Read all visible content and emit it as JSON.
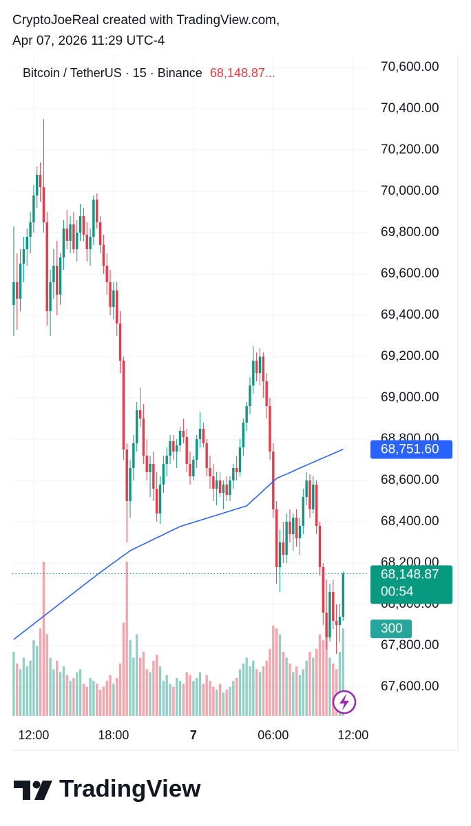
{
  "chart_data": {
    "type": "candlestick",
    "header": [
      "CryptoJoeReal created with TradingView.com,",
      "Apr 07, 2026 11:29 UTC-4"
    ],
    "title": "Bitcoin / TetherUS · 15 · Binance",
    "price_text": "68,148.87...",
    "brand": "TradingView",
    "up_color": "#089981",
    "down_color": "#f23645",
    "ma_color": "#2962ff",
    "grid": true,
    "ylim": [
      67460,
      70660
    ],
    "yticks": [
      {
        "value": 70600,
        "label": "70,600.00"
      },
      {
        "value": 70400,
        "label": "70,400.00"
      },
      {
        "value": 70200,
        "label": "70,200.00"
      },
      {
        "value": 70000,
        "label": "70,000.00"
      },
      {
        "value": 69800,
        "label": "69,800.00"
      },
      {
        "value": 69600,
        "label": "69,600.00"
      },
      {
        "value": 69400,
        "label": "69,400.00"
      },
      {
        "value": 69200,
        "label": "69,200.00"
      },
      {
        "value": 69000,
        "label": "69,000.00"
      },
      {
        "value": 68800,
        "label": "68,800.00"
      },
      {
        "value": 68600,
        "label": "68,600.00"
      },
      {
        "value": 68400,
        "label": "68,400.00"
      },
      {
        "value": 68200,
        "label": "68,200.00"
      },
      {
        "value": 68000,
        "label": "68,000.00"
      },
      {
        "value": 67800,
        "label": "67,800.00"
      },
      {
        "value": 67600,
        "label": "67,600.00"
      }
    ],
    "xlim": [
      -0.4,
      106.6
    ],
    "xticks": [
      {
        "value": 6,
        "label": "12:00"
      },
      {
        "value": 30,
        "label": "18:00"
      },
      {
        "value": 54,
        "label": "7"
      },
      {
        "value": 78,
        "label": "06:00"
      },
      {
        "value": 102,
        "label": "12:00"
      }
    ],
    "vlim": [
      0,
      740
    ],
    "ma_last": {
      "value": 68751.6,
      "label": "68,751.60"
    },
    "last_price": {
      "value": 68148.87,
      "label": "68,148.87"
    },
    "countdown": "00:54",
    "open": [
      69450,
      69560,
      69480,
      69650,
      69720,
      69780,
      69850,
      69980,
      70080,
      70020,
      69850,
      69420,
      69560,
      69640,
      69500,
      69680,
      69820,
      69760,
      69840,
      69720,
      69800,
      69880,
      69790,
      69720,
      69780,
      69960,
      69850,
      69740,
      69640,
      69560,
      69440,
      69520,
      69360,
      69180,
      68750,
      68500,
      68660,
      68780,
      68940,
      68900,
      68720,
      68640,
      68680,
      68560,
      68440,
      68580,
      68680,
      68720,
      68790,
      68740,
      68770,
      68840,
      68810,
      68680,
      68620,
      68700,
      68800,
      68850,
      68780,
      68660,
      68620,
      68560,
      68600,
      68540,
      68580,
      68530,
      68600,
      68660,
      68640,
      68760,
      68880,
      68960,
      69060,
      69180,
      69120,
      69200,
      69080,
      68960,
      68740,
      68460,
      68180,
      68300,
      68240,
      68400,
      68340,
      68420,
      68320,
      68380,
      68520,
      68600,
      68460,
      68580,
      68380,
      68180,
      67960,
      67840,
      68060,
      67920,
      67900,
      67940
    ],
    "high": [
      69830,
      69700,
      69720,
      69780,
      69820,
      69900,
      70030,
      70120,
      70140,
      70350,
      69900,
      69620,
      69720,
      69760,
      69700,
      69860,
      69910,
      69880,
      69900,
      69860,
      69940,
      69920,
      69850,
      69820,
      69980,
      69990,
      69880,
      69790,
      69700,
      69620,
      69560,
      69560,
      69420,
      69200,
      68780,
      68700,
      68820,
      68980,
      69050,
      68970,
      68800,
      68720,
      68740,
      68640,
      68620,
      68720,
      68760,
      68820,
      68820,
      68800,
      68860,
      68900,
      68850,
      68740,
      68720,
      68820,
      68930,
      68880,
      68800,
      68720,
      68680,
      68640,
      68640,
      68600,
      68620,
      68620,
      68680,
      68720,
      68800,
      68900,
      68980,
      69100,
      69250,
      69220,
      69240,
      69220,
      69120,
      69000,
      68780,
      68500,
      68360,
      68400,
      68440,
      68460,
      68440,
      68460,
      68420,
      68560,
      68640,
      68630,
      68620,
      68600,
      68400,
      68200,
      68120,
      68100,
      68120,
      68000,
      68000,
      68160
    ],
    "low": [
      69300,
      69330,
      69420,
      69560,
      69640,
      69700,
      69800,
      69920,
      69950,
      69800,
      69350,
      69300,
      69480,
      69400,
      69450,
      69620,
      69720,
      69700,
      69700,
      69660,
      69760,
      69760,
      69660,
      69640,
      69740,
      69820,
      69700,
      69600,
      69500,
      69400,
      69380,
      69300,
      69120,
      68700,
      68300,
      68420,
      68600,
      68740,
      68860,
      68680,
      68600,
      68520,
      68500,
      68400,
      68390,
      68540,
      68620,
      68680,
      68700,
      68660,
      68740,
      68780,
      68640,
      68580,
      68600,
      68660,
      68760,
      68760,
      68620,
      68560,
      68500,
      68480,
      68520,
      68460,
      68500,
      68500,
      68560,
      68600,
      68620,
      68720,
      68840,
      68920,
      69020,
      69080,
      69060,
      69000,
      68900,
      68700,
      68420,
      68100,
      68060,
      68200,
      68200,
      68300,
      68260,
      68280,
      68240,
      68340,
      68480,
      68420,
      68440,
      68340,
      68140,
      67900,
      67780,
      67820,
      67880,
      67760,
      67820,
      67920
    ],
    "close": [
      69560,
      69480,
      69650,
      69720,
      69780,
      69850,
      69980,
      70080,
      70020,
      69850,
      69420,
      69560,
      69640,
      69500,
      69680,
      69820,
      69760,
      69840,
      69720,
      69800,
      69880,
      69790,
      69720,
      69780,
      69960,
      69850,
      69740,
      69640,
      69560,
      69440,
      69520,
      69360,
      69180,
      68750,
      68500,
      68660,
      68780,
      68940,
      68900,
      68720,
      68640,
      68680,
      68560,
      68440,
      68580,
      68680,
      68720,
      68790,
      68740,
      68770,
      68840,
      68810,
      68680,
      68620,
      68700,
      68800,
      68850,
      68780,
      68660,
      68620,
      68560,
      68600,
      68540,
      68580,
      68530,
      68600,
      68660,
      68640,
      68760,
      68880,
      68960,
      69060,
      69180,
      69120,
      69200,
      69080,
      68960,
      68740,
      68460,
      68180,
      68300,
      68240,
      68400,
      68340,
      68420,
      68320,
      68380,
      68520,
      68600,
      68460,
      68580,
      68380,
      68180,
      67960,
      67840,
      68060,
      67920,
      67900,
      67940,
      68148.87
    ],
    "volume": [
      220,
      180,
      160,
      200,
      170,
      190,
      260,
      240,
      300,
      530,
      280,
      200,
      160,
      190,
      150,
      170,
      140,
      120,
      130,
      150,
      160,
      110,
      100,
      130,
      120,
      110,
      90,
      100,
      120,
      140,
      110,
      130,
      180,
      320,
      530,
      260,
      200,
      280,
      200,
      220,
      160,
      150,
      190,
      210,
      170,
      120,
      140,
      110,
      100,
      130,
      120,
      110,
      150,
      140,
      120,
      130,
      150,
      110,
      140,
      120,
      100,
      90,
      110,
      80,
      90,
      100,
      120,
      130,
      160,
      180,
      200,
      170,
      190,
      160,
      150,
      170,
      190,
      230,
      310,
      300,
      280,
      220,
      200,
      180,
      150,
      170,
      140,
      160,
      190,
      220,
      200,
      230,
      280,
      260,
      300,
      200,
      180,
      160,
      220,
      300
    ],
    "ma": [
      67830,
      67843,
      67855,
      67868,
      67880,
      67893,
      67905,
      67918,
      67930,
      67943,
      67955,
      67968,
      67980,
      67993,
      68005,
      68018,
      68030,
      68043,
      68055,
      68068,
      68080,
      68093,
      68105,
      68118,
      68130,
      68143,
      68155,
      68166,
      68178,
      68190,
      68202,
      68213,
      68225,
      68237,
      68248,
      68260,
      68268,
      68276,
      68284,
      68291,
      68299,
      68307,
      68315,
      68323,
      68330,
      68338,
      68346,
      68354,
      68362,
      68369,
      68377,
      68382,
      68387,
      68392,
      68397,
      68402,
      68407,
      68412,
      68417,
      68422,
      68427,
      68432,
      68437,
      68442,
      68447,
      68452,
      68457,
      68462,
      68467,
      68472,
      68477,
      68492,
      68507,
      68521,
      68536,
      68551,
      68566,
      68580,
      68595,
      68610,
      68617,
      68624,
      68631,
      68638,
      68645,
      68653,
      68660,
      68667,
      68674,
      68681,
      68688,
      68695,
      68702,
      68709,
      68716,
      68723,
      68730,
      68737,
      68744,
      68751.6
    ]
  }
}
